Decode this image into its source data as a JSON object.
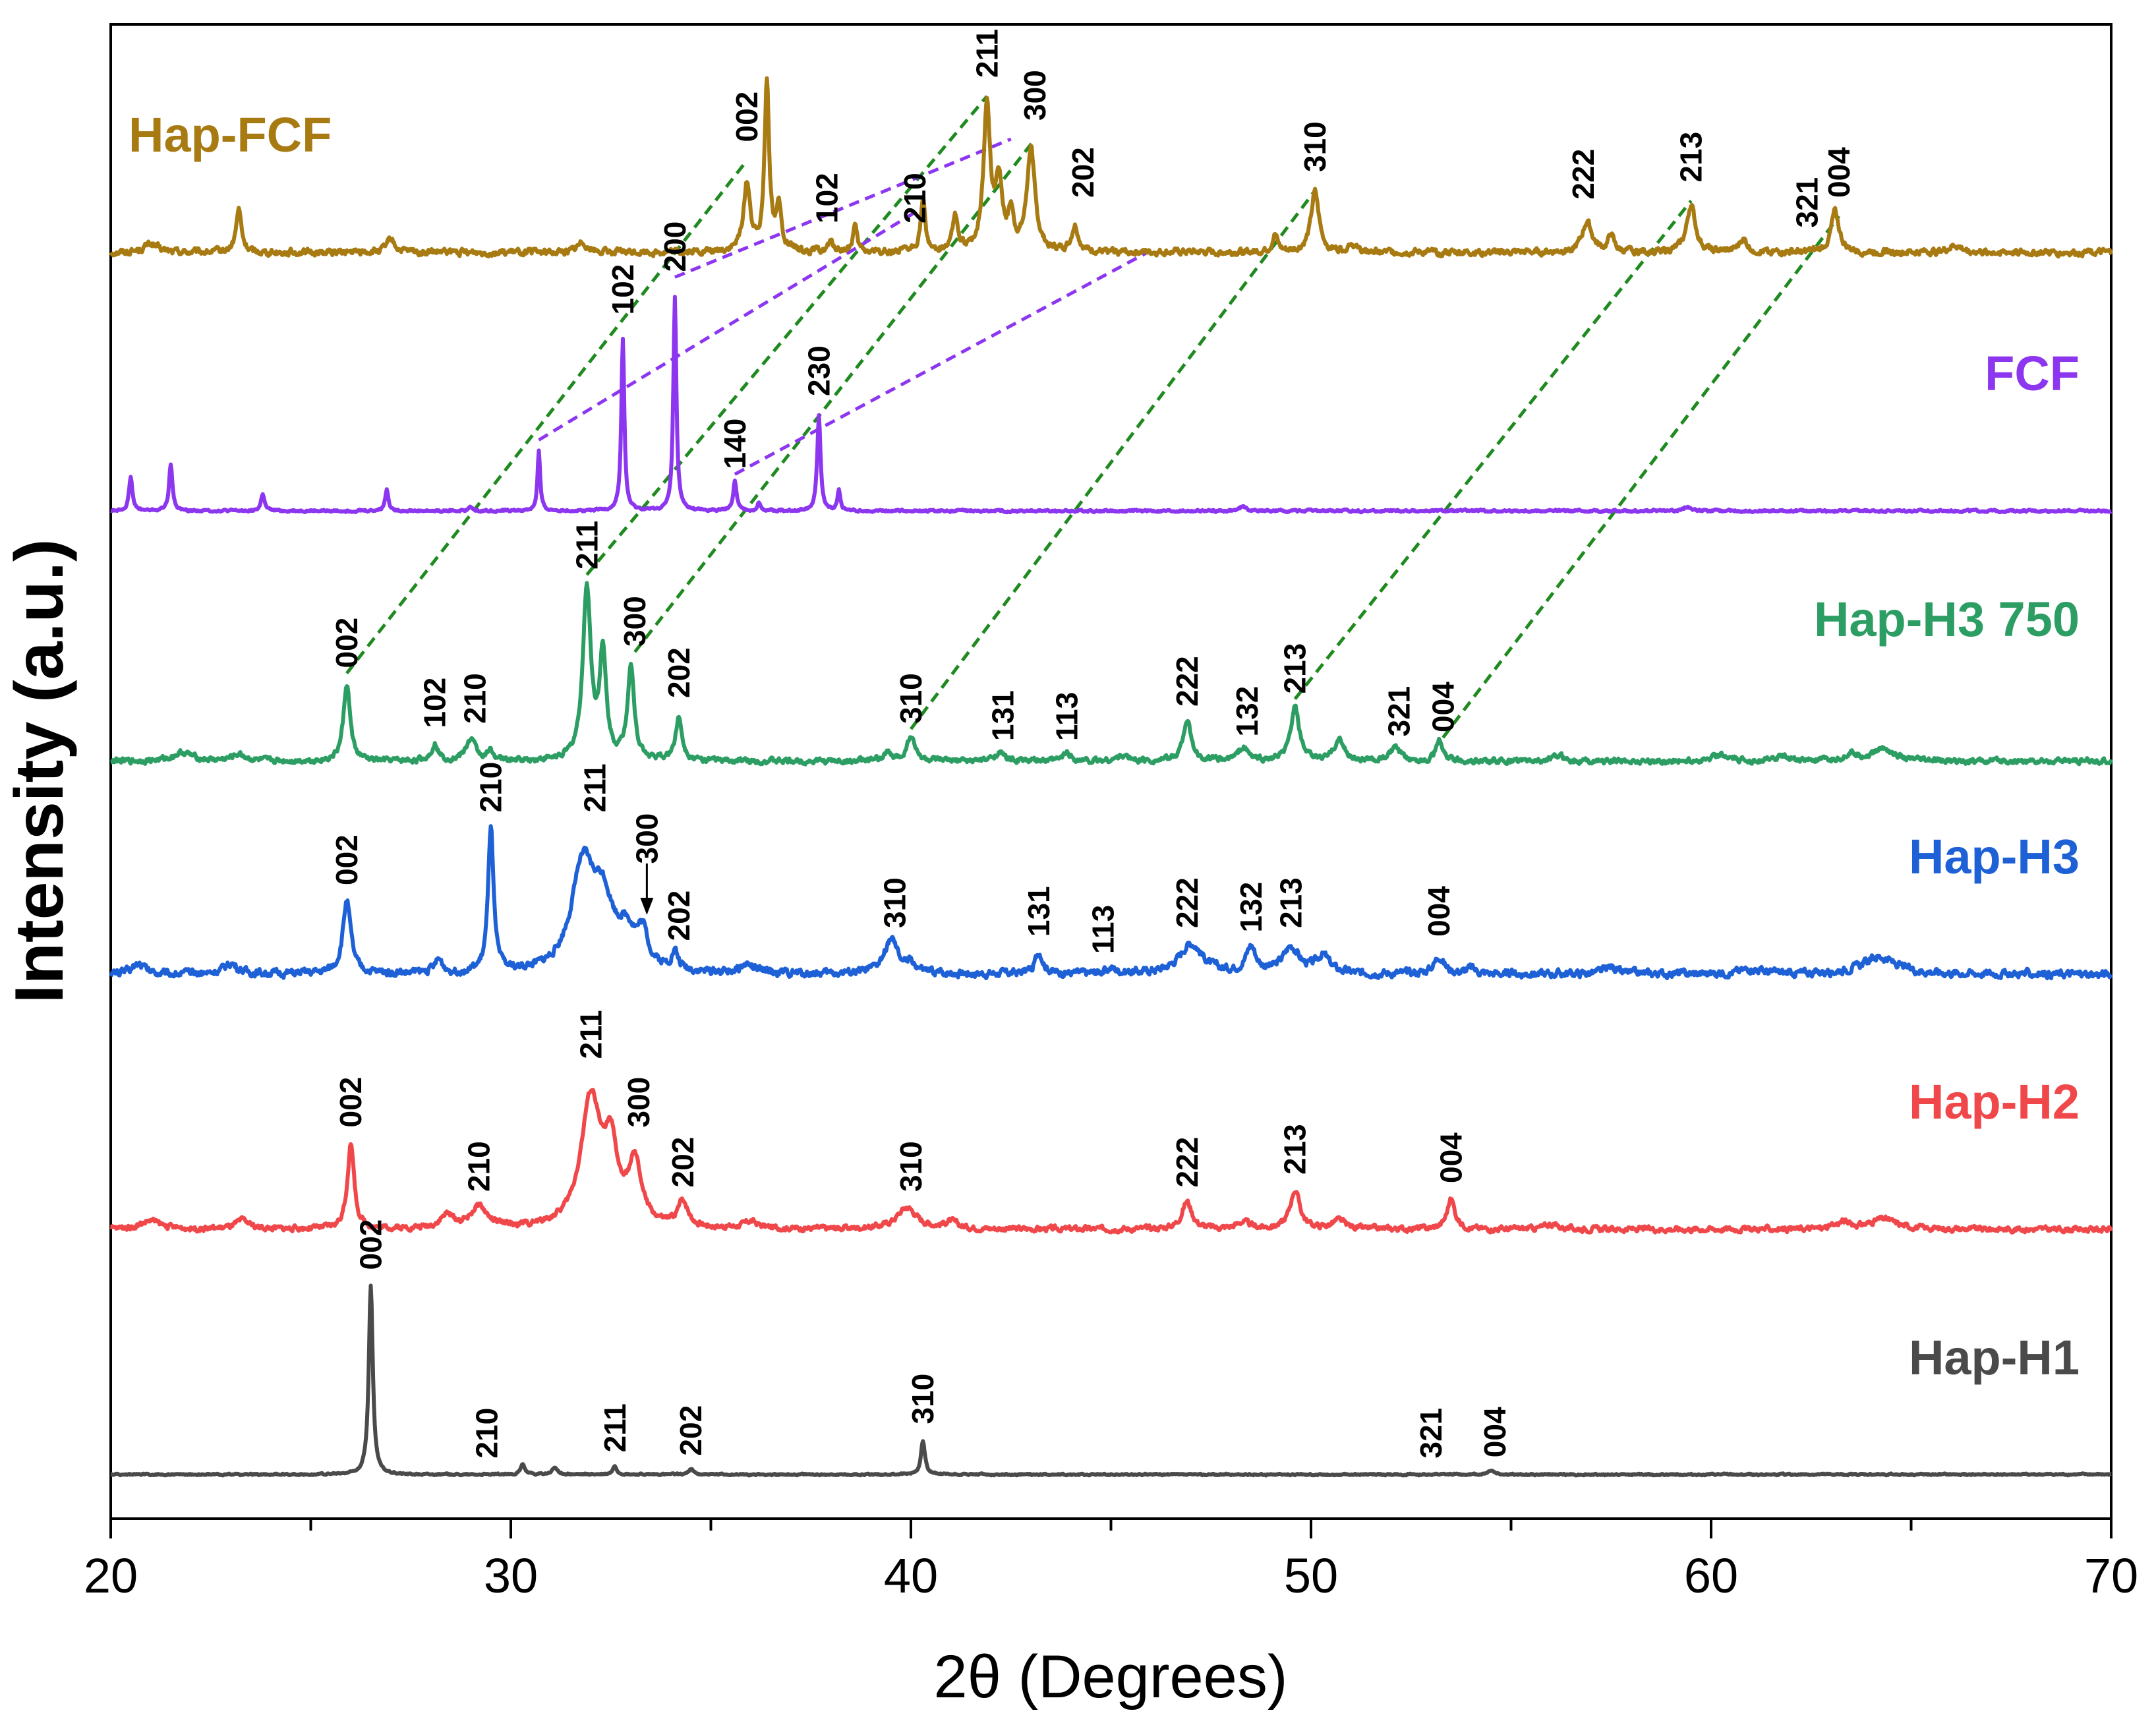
{
  "chart_data": {
    "type": "line",
    "title": "",
    "xlabel": "2θ (Degrees)",
    "ylabel": "Intensity (a.u.)",
    "xlim": [
      20,
      70
    ],
    "xticks": [
      20,
      30,
      40,
      50,
      60,
      70
    ],
    "tick_labels": [
      "20",
      "30",
      "40",
      "50",
      "60",
      "70"
    ],
    "grid": false,
    "series": [
      {
        "name": "Hap-FCF",
        "color": "#a87a12",
        "baseline": 0.0,
        "noise": 0.006,
        "peaks": [
          [
            21.0,
            0.01,
            0.2
          ],
          [
            23.2,
            0.05,
            0.08
          ],
          [
            27.0,
            0.015,
            0.12
          ],
          [
            31.8,
            0.012,
            0.15
          ],
          [
            35.9,
            0.08,
            0.1
          ],
          [
            36.4,
            0.2,
            0.07
          ],
          [
            36.7,
            0.05,
            0.08
          ],
          [
            38.0,
            0.01,
            0.1
          ],
          [
            38.6,
            0.03,
            0.06
          ],
          [
            40.3,
            0.06,
            0.07
          ],
          [
            41.1,
            0.04,
            0.08
          ],
          [
            41.9,
            0.17,
            0.1
          ],
          [
            42.2,
            0.08,
            0.1
          ],
          [
            42.5,
            0.04,
            0.08
          ],
          [
            43.0,
            0.12,
            0.12
          ],
          [
            44.1,
            0.03,
            0.1
          ],
          [
            49.1,
            0.02,
            0.08
          ],
          [
            50.1,
            0.07,
            0.12
          ],
          [
            51.0,
            0.01,
            0.12
          ],
          [
            56.9,
            0.035,
            0.15
          ],
          [
            57.5,
            0.02,
            0.08
          ],
          [
            59.5,
            0.055,
            0.13
          ],
          [
            60.8,
            0.015,
            0.12
          ],
          [
            63.1,
            0.048,
            0.12
          ],
          [
            66.1,
            0.008,
            0.2
          ]
        ],
        "labels": [
          {
            "text": "002",
            "x": 35.9,
            "h": 0.115
          },
          {
            "text": "102",
            "x": 37.9,
            "h": 0.02
          },
          {
            "text": "210",
            "x": 40.1,
            "h": 0.02
          },
          {
            "text": "211",
            "x": 41.9,
            "h": 0.19
          },
          {
            "text": "300",
            "x": 43.1,
            "h": 0.14
          },
          {
            "text": "202",
            "x": 44.3,
            "h": 0.05
          },
          {
            "text": "310",
            "x": 50.1,
            "h": 0.08
          },
          {
            "text": "222",
            "x": 56.8,
            "h": 0.048
          },
          {
            "text": "213",
            "x": 59.5,
            "h": 0.068
          },
          {
            "text": "321",
            "x": 62.4,
            "h": 0.015
          },
          {
            "text": "004",
            "x": 63.2,
            "h": 0.05
          }
        ]
      },
      {
        "name": "FCF",
        "color": "#8c36f0",
        "baseline": 0.0,
        "noise": 0.002,
        "peaks": [
          [
            20.5,
            0.04,
            0.05
          ],
          [
            21.5,
            0.055,
            0.05
          ],
          [
            23.8,
            0.02,
            0.05
          ],
          [
            26.9,
            0.025,
            0.05
          ],
          [
            29.0,
            0.005,
            0.05
          ],
          [
            30.7,
            0.07,
            0.04
          ],
          [
            32.8,
            0.2,
            0.045
          ],
          [
            34.1,
            0.25,
            0.045
          ],
          [
            35.6,
            0.035,
            0.05
          ],
          [
            36.2,
            0.01,
            0.04
          ],
          [
            37.7,
            0.11,
            0.05
          ],
          [
            38.2,
            0.025,
            0.04
          ],
          [
            48.3,
            0.006,
            0.08
          ],
          [
            59.4,
            0.005,
            0.1
          ]
        ],
        "labels": [
          {
            "text": "102",
            "x": 32.8,
            "h": 0.215
          },
          {
            "text": "200",
            "x": 34.1,
            "h": 0.265
          },
          {
            "text": "140",
            "x": 35.6,
            "h": 0.035
          },
          {
            "text": "230",
            "x": 37.7,
            "h": 0.12
          }
        ]
      },
      {
        "name": "Hap-H3 750",
        "color": "#2d9e63",
        "baseline": 0.0,
        "noise": 0.005,
        "peaks": [
          [
            21.8,
            0.01,
            0.3
          ],
          [
            23.2,
            0.008,
            0.2
          ],
          [
            25.9,
            0.09,
            0.1
          ],
          [
            28.1,
            0.02,
            0.1
          ],
          [
            29.0,
            0.025,
            0.15
          ],
          [
            29.5,
            0.01,
            0.1
          ],
          [
            31.9,
            0.2,
            0.12
          ],
          [
            32.3,
            0.12,
            0.1
          ],
          [
            33.0,
            0.11,
            0.1
          ],
          [
            34.2,
            0.05,
            0.1
          ],
          [
            39.4,
            0.01,
            0.1
          ],
          [
            40.0,
            0.03,
            0.12
          ],
          [
            42.2,
            0.01,
            0.15
          ],
          [
            43.9,
            0.01,
            0.12
          ],
          [
            45.3,
            0.006,
            0.2
          ],
          [
            46.9,
            0.048,
            0.12
          ],
          [
            48.3,
            0.016,
            0.15
          ],
          [
            49.6,
            0.062,
            0.13
          ],
          [
            50.7,
            0.025,
            0.15
          ],
          [
            52.1,
            0.015,
            0.15
          ],
          [
            53.2,
            0.024,
            0.1
          ],
          [
            56.2,
            0.006,
            0.2
          ],
          [
            60.2,
            0.008,
            0.2
          ],
          [
            61.8,
            0.006,
            0.2
          ],
          [
            63.5,
            0.008,
            0.2
          ],
          [
            64.3,
            0.015,
            0.3
          ]
        ],
        "labels": [
          {
            "text": "002",
            "x": 25.9,
            "h": 0.095
          },
          {
            "text": "102",
            "x": 28.1,
            "h": 0.025
          },
          {
            "text": "210",
            "x": 29.1,
            "h": 0.03
          },
          {
            "text": "211",
            "x": 31.9,
            "h": 0.21
          },
          {
            "text": "300",
            "x": 33.1,
            "h": 0.12
          },
          {
            "text": "202",
            "x": 34.2,
            "h": 0.06
          },
          {
            "text": "310",
            "x": 40.0,
            "h": 0.03
          },
          {
            "text": "131",
            "x": 42.3,
            "h": 0.01
          },
          {
            "text": "113",
            "x": 43.9,
            "h": 0.01
          },
          {
            "text": "222",
            "x": 46.9,
            "h": 0.05
          },
          {
            "text": "132",
            "x": 48.4,
            "h": 0.015
          },
          {
            "text": "213",
            "x": 49.6,
            "h": 0.065
          },
          {
            "text": "321",
            "x": 52.2,
            "h": 0.015
          },
          {
            "text": "004",
            "x": 53.3,
            "h": 0.02
          }
        ]
      },
      {
        "name": "Hap-H3",
        "color": "#1e60d6",
        "baseline": 0.0,
        "noise": 0.007,
        "peaks": [
          [
            20.7,
            0.012,
            0.2
          ],
          [
            23.0,
            0.012,
            0.2
          ],
          [
            25.9,
            0.085,
            0.12
          ],
          [
            28.2,
            0.015,
            0.12
          ],
          [
            29.5,
            0.17,
            0.08
          ],
          [
            31.8,
            0.12,
            0.35
          ],
          [
            32.3,
            0.07,
            0.3
          ],
          [
            32.9,
            0.04,
            0.3
          ],
          [
            33.3,
            0.035,
            0.15
          ],
          [
            34.1,
            0.02,
            0.1
          ],
          [
            35.9,
            0.01,
            0.2
          ],
          [
            39.5,
            0.04,
            0.2
          ],
          [
            40.0,
            0.01,
            0.15
          ],
          [
            43.2,
            0.025,
            0.12
          ],
          [
            45.0,
            0.006,
            0.15
          ],
          [
            47.0,
            0.035,
            0.35
          ],
          [
            48.5,
            0.03,
            0.15
          ],
          [
            49.5,
            0.03,
            0.25
          ],
          [
            50.3,
            0.02,
            0.2
          ],
          [
            53.2,
            0.02,
            0.15
          ],
          [
            54.0,
            0.006,
            0.15
          ],
          [
            57.5,
            0.008,
            0.2
          ],
          [
            61.0,
            0.006,
            0.3
          ],
          [
            64.2,
            0.02,
            0.5
          ]
        ],
        "labels": [
          {
            "text": "002",
            "x": 25.9,
            "h": 0.09
          },
          {
            "text": "210",
            "x": 29.5,
            "h": 0.175
          },
          {
            "text": "211",
            "x": 32.1,
            "h": 0.175
          },
          {
            "text": "300",
            "x": 33.4,
            "h": 0.115
          },
          {
            "text": "202",
            "x": 34.2,
            "h": 0.025
          },
          {
            "text": "310",
            "x": 39.6,
            "h": 0.04
          },
          {
            "text": "131",
            "x": 43.2,
            "h": 0.03
          },
          {
            "text": "113",
            "x": 44.8,
            "h": 0.01
          },
          {
            "text": "222",
            "x": 46.9,
            "h": 0.04
          },
          {
            "text": "132",
            "x": 48.5,
            "h": 0.035
          },
          {
            "text": "213",
            "x": 49.5,
            "h": 0.04
          },
          {
            "text": "004",
            "x": 53.2,
            "h": 0.03
          }
        ]
      },
      {
        "name": "Hap-H2",
        "color": "#f0484a",
        "baseline": 0.0,
        "noise": 0.005,
        "peaks": [
          [
            21.0,
            0.01,
            0.3
          ],
          [
            23.3,
            0.01,
            0.2
          ],
          [
            26.0,
            0.1,
            0.1
          ],
          [
            28.4,
            0.015,
            0.2
          ],
          [
            29.2,
            0.025,
            0.25
          ],
          [
            32.0,
            0.15,
            0.3
          ],
          [
            32.5,
            0.08,
            0.2
          ],
          [
            33.1,
            0.07,
            0.2
          ],
          [
            34.3,
            0.03,
            0.15
          ],
          [
            36.0,
            0.008,
            0.2
          ],
          [
            39.9,
            0.025,
            0.3
          ],
          [
            41.0,
            0.008,
            0.2
          ],
          [
            46.9,
            0.032,
            0.15
          ],
          [
            48.3,
            0.008,
            0.2
          ],
          [
            49.6,
            0.045,
            0.15
          ],
          [
            50.7,
            0.01,
            0.2
          ],
          [
            53.5,
            0.035,
            0.12
          ],
          [
            56.0,
            0.006,
            0.2
          ],
          [
            63.3,
            0.008,
            0.2
          ],
          [
            64.3,
            0.012,
            0.4
          ]
        ],
        "labels": [
          {
            "text": "002",
            "x": 26.0,
            "h": 0.105
          },
          {
            "text": "210",
            "x": 29.2,
            "h": 0.03
          },
          {
            "text": "211",
            "x": 32.0,
            "h": 0.185
          },
          {
            "text": "300",
            "x": 33.2,
            "h": 0.105
          },
          {
            "text": "202",
            "x": 34.3,
            "h": 0.035
          },
          {
            "text": "310",
            "x": 40.0,
            "h": 0.03
          },
          {
            "text": "222",
            "x": 46.9,
            "h": 0.035
          },
          {
            "text": "213",
            "x": 49.6,
            "h": 0.05
          },
          {
            "text": "004",
            "x": 53.5,
            "h": 0.04
          }
        ]
      },
      {
        "name": "Hap-H1",
        "color": "#4a4a4a",
        "baseline": 0.0,
        "noise": 0.0015,
        "peaks": [
          [
            26.5,
            0.22,
            0.06
          ],
          [
            30.3,
            0.012,
            0.06
          ],
          [
            31.1,
            0.008,
            0.08
          ],
          [
            32.6,
            0.01,
            0.06
          ],
          [
            34.5,
            0.006,
            0.08
          ],
          [
            40.3,
            0.04,
            0.06
          ],
          [
            54.5,
            0.005,
            0.1
          ]
        ],
        "labels": [
          {
            "text": "002",
            "x": 26.5,
            "h": 0.225
          },
          {
            "text": "210",
            "x": 29.4,
            "h": 0.005
          },
          {
            "text": "211",
            "x": 32.6,
            "h": 0.012
          },
          {
            "text": "202",
            "x": 34.5,
            "h": 0.008
          },
          {
            "text": "310",
            "x": 40.3,
            "h": 0.045
          },
          {
            "text": "321",
            "x": 53.0,
            "h": 0.005
          },
          {
            "text": "004",
            "x": 54.6,
            "h": 0.006
          }
        ]
      }
    ],
    "guide_lines": [
      {
        "color": "#1f8a1f",
        "from": [
          25.9,
          "Hap-H3 750",
          0.095
        ],
        "to": [
          35.9,
          "Hap-FCF",
          0.115
        ]
      },
      {
        "color": "#1f8a1f",
        "from": [
          31.9,
          "Hap-H3 750",
          0.21
        ],
        "to": [
          41.9,
          "Hap-FCF",
          0.19
        ]
      },
      {
        "color": "#1f8a1f",
        "from": [
          33.1,
          "Hap-H3 750",
          0.12
        ],
        "to": [
          43.1,
          "Hap-FCF",
          0.14
        ]
      },
      {
        "color": "#1f8a1f",
        "from": [
          40.0,
          "Hap-H3 750",
          0.03
        ],
        "to": [
          50.1,
          "Hap-FCF",
          0.08
        ]
      },
      {
        "color": "#1f8a1f",
        "from": [
          49.6,
          "Hap-H3 750",
          0.065
        ],
        "to": [
          59.5,
          "Hap-FCF",
          0.068
        ]
      },
      {
        "color": "#1f8a1f",
        "from": [
          53.3,
          "Hap-H3 750",
          0.02
        ],
        "to": [
          63.2,
          "Hap-FCF",
          0.05
        ]
      },
      {
        "color": "#8c36f0",
        "from": [
          30.7,
          "FCF",
          0.075
        ],
        "to": [
          40.3,
          "Hap-FCF",
          0.06
        ]
      },
      {
        "color": "#8c36f0",
        "from": [
          34.1,
          "FCF",
          0.265
        ],
        "to": [
          42.5,
          "Hap-FCF",
          0.14
        ]
      },
      {
        "color": "#8c36f0",
        "from": [
          35.6,
          "FCF",
          0.035
        ],
        "to": [
          46.0,
          "Hap-FCF",
          0.01
        ]
      }
    ]
  }
}
